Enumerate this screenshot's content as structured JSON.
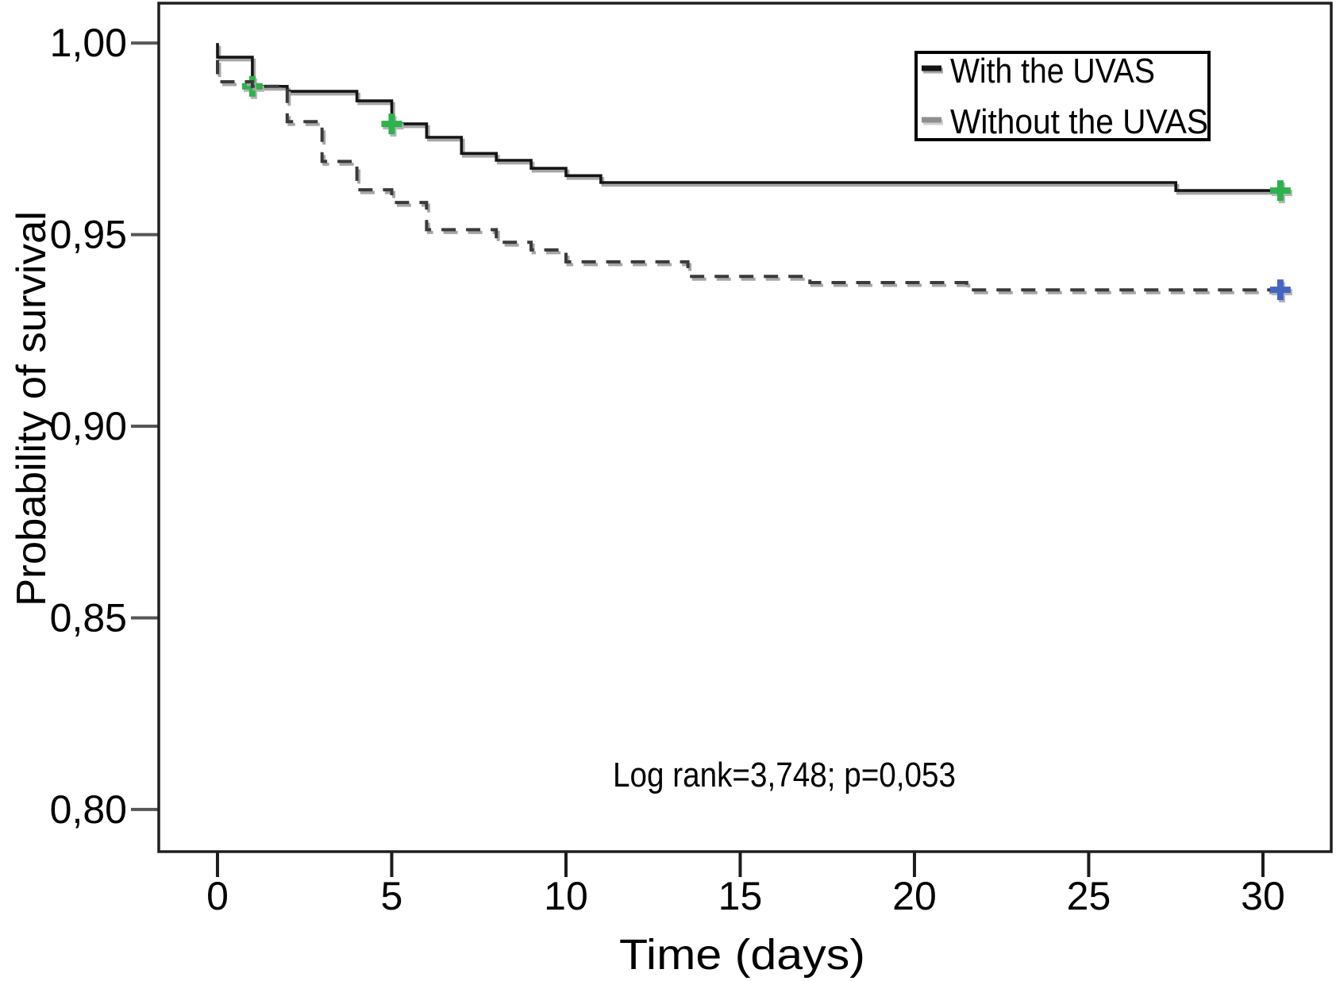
{
  "chart_data": {
    "type": "line",
    "subtype": "kaplan-meier-step-survival",
    "title": "",
    "xlabel": "Time (days)",
    "ylabel": "Probability of survival",
    "annotation": "Log rank=3,748; p=0,053",
    "grid": false,
    "legend_position": "top-right",
    "decimal_separator": "comma",
    "xlim": [
      -1.685,
      31.96
    ],
    "ylim": [
      0.789,
      1.0104
    ],
    "x_ticks": [
      {
        "v": 0,
        "label": "0"
      },
      {
        "v": 5,
        "label": "5"
      },
      {
        "v": 10,
        "label": "10"
      },
      {
        "v": 15,
        "label": "15"
      },
      {
        "v": 20,
        "label": "20"
      },
      {
        "v": 25,
        "label": "25"
      },
      {
        "v": 30,
        "label": "30"
      }
    ],
    "y_ticks": [
      {
        "v": 1.0,
        "label": "1,00"
      },
      {
        "v": 0.95,
        "label": "0,95"
      },
      {
        "v": 0.9,
        "label": "0,90"
      },
      {
        "v": 0.85,
        "label": "0,85"
      },
      {
        "v": 0.8,
        "label": "0,80"
      }
    ],
    "colors": {
      "axis": "#1c1c1c",
      "y_tick": "#565656",
      "line_shadow": "#a6a6a6",
      "legend_border": "#000000",
      "censor_green": "#2db24c",
      "censor_blue": "#4565c4"
    },
    "series": [
      {
        "name": "With the UVAS",
        "line_style": "solid",
        "color": "#141414",
        "legend_swatch_color": "#141414",
        "censor_color": "#2db24c",
        "points": [
          [
            0,
            1.0
          ],
          [
            0,
            0.9963
          ],
          [
            1,
            0.9963
          ],
          [
            1,
            0.9887
          ],
          [
            2,
            0.9887
          ],
          [
            2,
            0.9874
          ],
          [
            4,
            0.9874
          ],
          [
            4,
            0.9849
          ],
          [
            5,
            0.9849
          ],
          [
            5,
            0.9789
          ],
          [
            6,
            0.9789
          ],
          [
            6,
            0.9754
          ],
          [
            7,
            0.9754
          ],
          [
            7,
            0.9712
          ],
          [
            8,
            0.9712
          ],
          [
            8,
            0.9694
          ],
          [
            9,
            0.9694
          ],
          [
            9,
            0.9673
          ],
          [
            10,
            0.9673
          ],
          [
            10,
            0.9654
          ],
          [
            11,
            0.9654
          ],
          [
            11,
            0.9636
          ],
          [
            27.5,
            0.9636
          ],
          [
            27.5,
            0.9615
          ],
          [
            30.7,
            0.9615
          ]
        ],
        "censor_marks": [
          [
            1,
            0.9887
          ],
          [
            5,
            0.9789
          ],
          [
            30.5,
            0.9615
          ]
        ]
      },
      {
        "name": "Without the UVAS",
        "line_style": "dashed",
        "color": "#3a3a3a",
        "legend_swatch_color": "#8f8f8f",
        "censor_color": "#4565c4",
        "points": [
          [
            0,
            0.9956
          ],
          [
            0,
            0.9899
          ],
          [
            1,
            0.9899
          ],
          [
            1,
            0.9887
          ],
          [
            2,
            0.9887
          ],
          [
            2,
            0.9795
          ],
          [
            3,
            0.9795
          ],
          [
            3,
            0.9691
          ],
          [
            4,
            0.9691
          ],
          [
            4,
            0.9617
          ],
          [
            5,
            0.9617
          ],
          [
            5,
            0.9584
          ],
          [
            6,
            0.9584
          ],
          [
            6,
            0.9513
          ],
          [
            8,
            0.9513
          ],
          [
            8,
            0.948
          ],
          [
            9,
            0.948
          ],
          [
            9,
            0.946
          ],
          [
            10,
            0.946
          ],
          [
            10,
            0.9429
          ],
          [
            13.5,
            0.9429
          ],
          [
            13.5,
            0.9391
          ],
          [
            17,
            0.9391
          ],
          [
            17,
            0.9375
          ],
          [
            21.5,
            0.9375
          ],
          [
            21.5,
            0.9356
          ],
          [
            30.7,
            0.9356
          ]
        ],
        "censor_marks": [
          [
            30.5,
            0.9356
          ]
        ]
      }
    ]
  }
}
